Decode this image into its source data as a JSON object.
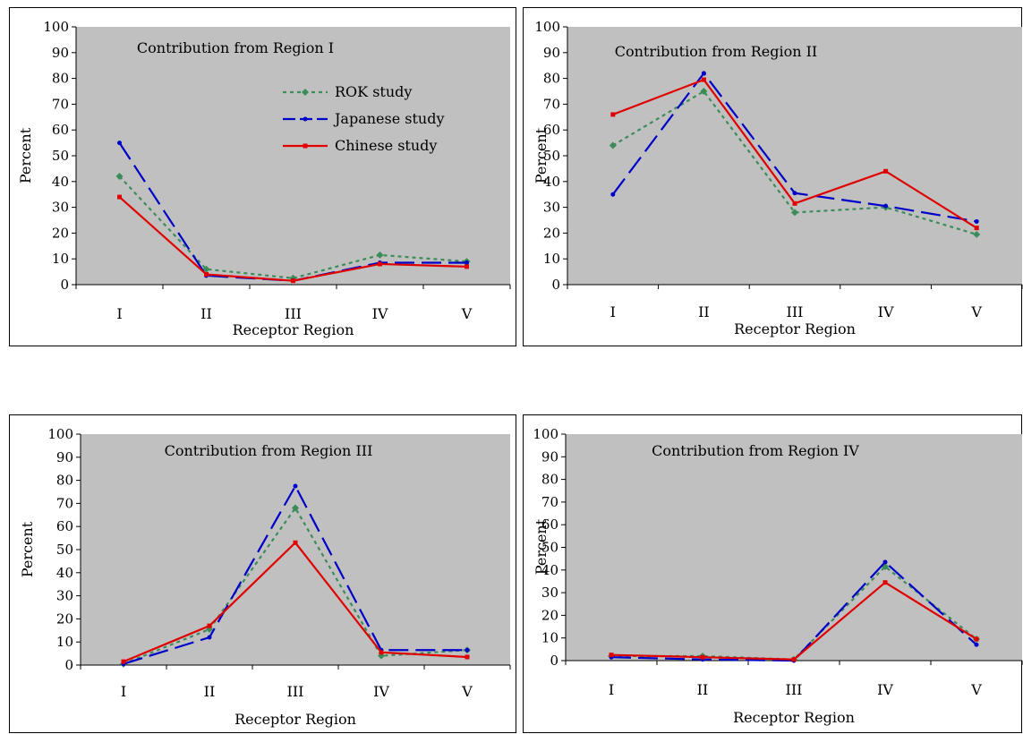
{
  "colors": {
    "plot_bg": "#c0c0c0",
    "axis": "#000000",
    "frame": "#000000"
  },
  "series_styles": [
    {
      "key": "rok",
      "color": "#3c8c5a",
      "dash": "4,4",
      "marker": "diamond"
    },
    {
      "key": "jpn",
      "color": "#0000c8",
      "dash": "22,8",
      "marker": "circle"
    },
    {
      "key": "chn",
      "color": "#e00000",
      "dash": "",
      "marker": "square"
    }
  ],
  "chart_data": [
    {
      "type": "line",
      "title": "Contribution from Region I",
      "xlabel": "Receptor Region",
      "ylabel": "Percent",
      "categories": [
        "I",
        "II",
        "III",
        "IV",
        "V"
      ],
      "yticks": [
        "0",
        "10",
        "20",
        "30",
        "40",
        "50",
        "60",
        "70",
        "80",
        "90",
        "100"
      ],
      "ylim": [
        0,
        100
      ],
      "legend": "top-right",
      "series": [
        {
          "name": "ROK study",
          "values": [
            42,
            6,
            2.5,
            11.5,
            9
          ]
        },
        {
          "name": "Japanese study",
          "values": [
            55,
            3.5,
            1.5,
            8.5,
            8.5
          ]
        },
        {
          "name": "Chinese study",
          "values": [
            34,
            4,
            1.5,
            8,
            7
          ]
        }
      ]
    },
    {
      "type": "line",
      "title": "Contribution from Region II",
      "xlabel": "Receptor Region",
      "ylabel": "Percent",
      "categories": [
        "I",
        "II",
        "III",
        "IV",
        "V"
      ],
      "yticks": [
        "0",
        "10",
        "20",
        "30",
        "40",
        "50",
        "60",
        "70",
        "80",
        "90",
        "100"
      ],
      "ylim": [
        0,
        100
      ],
      "series": [
        {
          "values": [
            54,
            75,
            28,
            30,
            19.5
          ]
        },
        {
          "values": [
            35,
            82,
            35.5,
            30.5,
            24.5
          ]
        },
        {
          "values": [
            66,
            79.5,
            31.5,
            44,
            22
          ]
        }
      ]
    },
    {
      "type": "line",
      "title": "Contribution from Region III",
      "xlabel": "Receptor Region",
      "ylabel": "Percent",
      "categories": [
        "I",
        "II",
        "III",
        "IV",
        "V"
      ],
      "yticks": [
        "0",
        "10",
        "20",
        "30",
        "40",
        "50",
        "60",
        "70",
        "80",
        "90",
        "100"
      ],
      "ylim": [
        0,
        100
      ],
      "series": [
        {
          "values": [
            0.5,
            15.5,
            68,
            4,
            6.5
          ]
        },
        {
          "values": [
            0.5,
            12,
            77.5,
            6.5,
            6.5
          ]
        },
        {
          "values": [
            1.5,
            17,
            53,
            5.5,
            3.5
          ]
        }
      ]
    },
    {
      "type": "line",
      "title": "Contribution from Region IV",
      "xlabel": "Receptor Region",
      "ylabel": "Percent",
      "categories": [
        "I",
        "II",
        "III",
        "IV",
        "V"
      ],
      "yticks": [
        "0",
        "10",
        "20",
        "30",
        "40",
        "50",
        "60",
        "70",
        "80",
        "90",
        "100"
      ],
      "ylim": [
        0,
        100
      ],
      "series": [
        {
          "values": [
            2,
            2,
            0.5,
            41.5,
            9.5
          ]
        },
        {
          "values": [
            1.5,
            0.5,
            0,
            43.5,
            7
          ]
        },
        {
          "values": [
            2.5,
            1.5,
            0.5,
            34.5,
            9.5
          ]
        }
      ]
    }
  ]
}
